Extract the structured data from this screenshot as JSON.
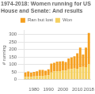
{
  "chart_data": {
    "type": "bar",
    "title": "1974-2018: Women running for US House and Senate: And results",
    "categories": [
      null,
      null,
      null,
      "1980",
      null,
      null,
      null,
      null,
      "1990",
      null,
      null,
      null,
      null,
      "2000",
      null,
      null,
      null,
      null,
      "2010",
      null,
      null,
      null,
      "2018"
    ],
    "series": [
      {
        "name": "Won",
        "color": "#f5d060",
        "values": [
          18,
          19,
          18,
          21,
          22,
          24,
          25,
          26,
          29,
          48,
          54,
          56,
          56,
          59,
          59,
          68,
          71,
          73,
          72,
          82,
          84,
          83,
          102
        ]
      },
      {
        "name": "Ran but lost",
        "color": "#f5a020",
        "values": [
          30,
          35,
          28,
          31,
          33,
          41,
          39,
          33,
          40,
          58,
          58,
          64,
          65,
          63,
          58,
          73,
          76,
          82,
          102,
          130,
          83,
          129,
          207
        ]
      }
    ],
    "ylabel": "# running",
    "ylim": [
      0,
      325
    ],
    "yticks": [
      0,
      50,
      100,
      150,
      200,
      250,
      300
    ],
    "stacked": true,
    "grid": true,
    "legend": "top"
  }
}
